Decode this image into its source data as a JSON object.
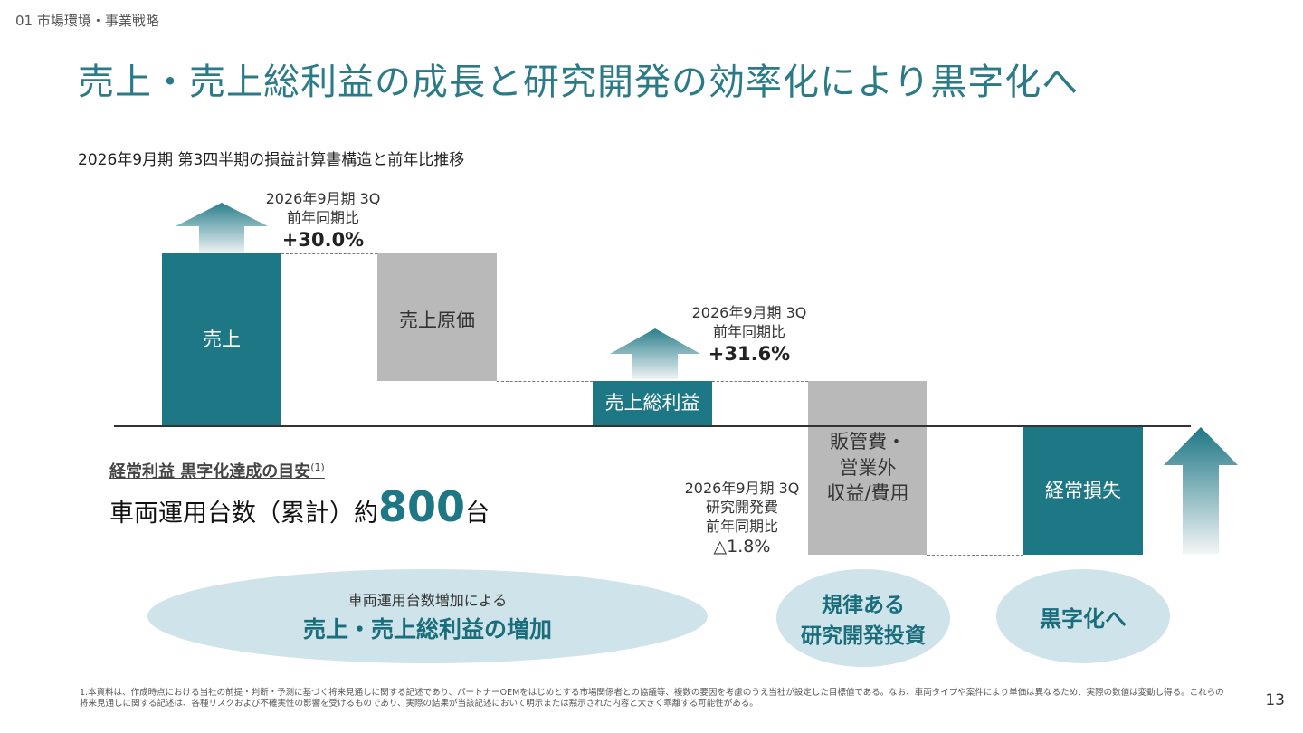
{
  "header": {
    "section_label": "01 市場環境・事業戦略",
    "title": "売上・売上総利益の成長と研究開発の効率化により黒字化へ"
  },
  "chart": {
    "subtitle": "2026年9月期 第3四半期の損益計算書構造と前年比推移",
    "bars": {
      "sales": "売上",
      "cogs": "売上原価",
      "gross_profit": "売上総利益",
      "sga_line1": "販管費・",
      "sga_line2": "営業外",
      "sga_line3": "収益/費用",
      "ordinary_loss": "経常損失"
    },
    "annotations": {
      "sales": {
        "period": "2026年9月期 3Q",
        "label": "前年同期比",
        "value": "+30.0%"
      },
      "gross_profit": {
        "period": "2026年9月期 3Q",
        "label": "前年同期比",
        "value": "+31.6%"
      },
      "rnd": {
        "period": "2026年9月期 3Q",
        "label1": "研究開発費",
        "label2": "前年同期比",
        "value": "△1.8%"
      }
    }
  },
  "target": {
    "heading": "経常利益 黒字化達成の目安",
    "footnote_ref": "(1)",
    "prefix": "車両運用台数（累計）約",
    "number": "800",
    "unit": "台"
  },
  "ellipses": {
    "sales": {
      "line1": "車両運用台数増加による",
      "line2": "売上・売上総利益の増加"
    },
    "rnd": {
      "line1": "規律ある",
      "line2": "研究開発投資"
    },
    "profit": {
      "line1": "黒字化へ"
    }
  },
  "footnote": "1.本資料は、作成時点における当社の前提・判断・予測に基づく将来見通しに関する記述であり、パートナーOEMをはじめとする市場関係者との協議等、複数の要因を考慮のうえ当社が設定した目標値である。なお、車両タイプや案件により単価は異なるため、実際の数値は変動し得る。これらの将来見通しに関する記述は、各種リスクおよび不確実性の影響を受けるものであり、実際の結果が当該記述において明示または黙示された内容と大きく乖離する可能性がある。",
  "page_number": "13",
  "colors": {
    "teal": "#1e7785",
    "gray": "#b9b9b9",
    "title": "#2b7a87",
    "ellipse": "#cfe3ea"
  },
  "icons": [
    "up-arrow-icon",
    "up-arrow-icon",
    "up-arrow-icon"
  ]
}
